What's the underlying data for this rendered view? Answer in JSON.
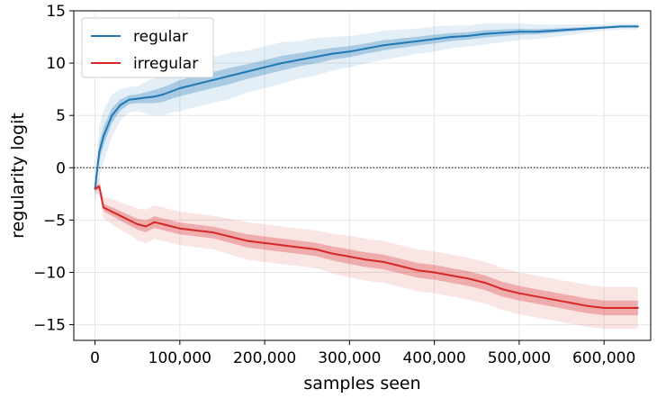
{
  "chart_data": {
    "type": "line",
    "xlabel": "samples seen",
    "ylabel": "regularity logit",
    "xlim": [
      -25000,
      655000
    ],
    "ylim": [
      -16.5,
      15
    ],
    "xticks": [
      0,
      100000,
      200000,
      300000,
      400000,
      500000,
      600000
    ],
    "xtick_labels": [
      "0",
      "100,000",
      "200,000",
      "300,000",
      "400,000",
      "500,000",
      "600,000"
    ],
    "yticks": [
      -15,
      -10,
      -5,
      0,
      5,
      10,
      15
    ],
    "ytick_labels": [
      "−15",
      "−10",
      "−5",
      "0",
      "5",
      "10",
      "15"
    ],
    "grid": true,
    "reference_line": {
      "y": 0,
      "style": "dotted",
      "color": "#000000"
    },
    "legend": {
      "position": "top-left"
    },
    "series": [
      {
        "name": "regular",
        "color": "#1f77b4",
        "x": [
          0,
          5000,
          10000,
          20000,
          30000,
          40000,
          50000,
          60000,
          70000,
          80000,
          90000,
          100000,
          120000,
          140000,
          160000,
          180000,
          200000,
          220000,
          240000,
          260000,
          280000,
          300000,
          320000,
          340000,
          360000,
          380000,
          400000,
          420000,
          440000,
          460000,
          480000,
          500000,
          520000,
          540000,
          560000,
          580000,
          600000,
          620000,
          640000
        ],
        "y": [
          -2.0,
          1.5,
          3.0,
          5.0,
          6.0,
          6.5,
          6.6,
          6.7,
          6.8,
          7.0,
          7.3,
          7.6,
          8.0,
          8.4,
          8.8,
          9.2,
          9.6,
          10.0,
          10.3,
          10.6,
          10.9,
          11.1,
          11.4,
          11.7,
          11.9,
          12.1,
          12.3,
          12.5,
          12.6,
          12.8,
          12.9,
          13.0,
          13.0,
          13.1,
          13.2,
          13.3,
          13.4,
          13.5,
          13.5
        ],
        "band_width": [
          1.5,
          2.5,
          2.5,
          2.0,
          1.5,
          1.2,
          1.2,
          1.5,
          1.8,
          2.0,
          2.0,
          2.2,
          2.2,
          2.2,
          2.2,
          2.0,
          2.0,
          2.0,
          1.8,
          1.8,
          1.6,
          1.5,
          1.4,
          1.4,
          1.3,
          1.2,
          1.2,
          1.1,
          1.0,
          1.0,
          0.9,
          0.8,
          0.7,
          0.6,
          0.5,
          0.4,
          0.3,
          0.3,
          0.3
        ]
      },
      {
        "name": "irregular",
        "color": "#d62728",
        "x": [
          0,
          5000,
          10000,
          20000,
          30000,
          40000,
          50000,
          60000,
          70000,
          80000,
          90000,
          100000,
          120000,
          140000,
          160000,
          180000,
          200000,
          220000,
          240000,
          260000,
          280000,
          300000,
          320000,
          340000,
          360000,
          380000,
          400000,
          420000,
          440000,
          460000,
          480000,
          500000,
          520000,
          540000,
          560000,
          580000,
          600000,
          620000,
          640000
        ],
        "y": [
          -2.0,
          -1.8,
          -3.8,
          -4.2,
          -4.6,
          -5.0,
          -5.4,
          -5.6,
          -5.2,
          -5.4,
          -5.6,
          -5.8,
          -6.0,
          -6.2,
          -6.6,
          -7.0,
          -7.2,
          -7.4,
          -7.6,
          -7.8,
          -8.2,
          -8.5,
          -8.8,
          -9.0,
          -9.4,
          -9.8,
          -10.0,
          -10.3,
          -10.6,
          -11.0,
          -11.6,
          -12.0,
          -12.3,
          -12.6,
          -12.9,
          -13.2,
          -13.4,
          -13.4,
          -13.4
        ],
        "band_width": [
          0.5,
          0.8,
          1.0,
          1.2,
          1.3,
          1.4,
          1.5,
          1.6,
          1.6,
          1.6,
          1.6,
          1.6,
          1.6,
          1.6,
          1.7,
          1.8,
          1.8,
          1.8,
          1.8,
          1.8,
          1.9,
          2.0,
          2.0,
          2.0,
          2.0,
          2.0,
          2.0,
          2.0,
          2.0,
          2.0,
          2.0,
          2.0,
          2.0,
          2.0,
          2.0,
          2.0,
          2.0,
          2.0,
          2.0
        ]
      }
    ]
  }
}
